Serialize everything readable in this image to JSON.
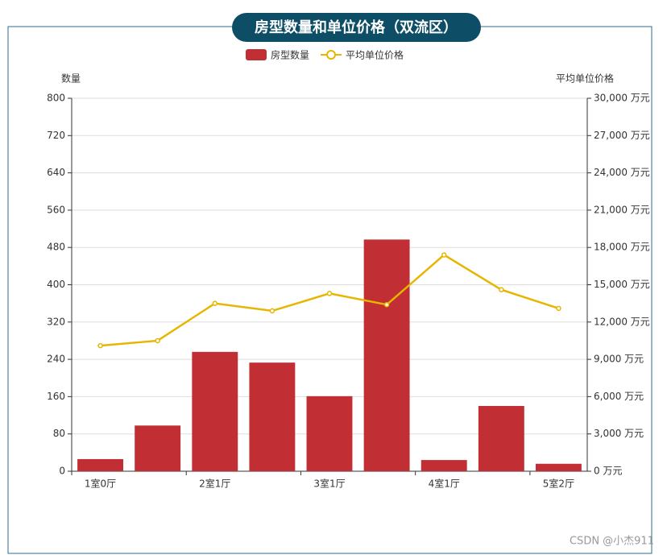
{
  "chart_data": {
    "type": "bar",
    "title": "房型数量和单位价格（双流区）",
    "ylabel": "数量",
    "y2label": "平均单位价格",
    "categories": [
      "1室0厅",
      null,
      "2室1厅",
      null,
      "3室1厅",
      null,
      "4室1厅",
      null,
      "5室2厅"
    ],
    "series": [
      {
        "name": "房型数量",
        "type": "bar",
        "color": "#c12e34",
        "values": [
          26,
          98,
          256,
          233,
          161,
          497,
          24,
          140,
          16
        ]
      },
      {
        "name": "平均单位价格",
        "type": "line",
        "color": "#e6b600",
        "axis": "y2",
        "values": [
          10100,
          10500,
          13500,
          12900,
          14300,
          13400,
          17400,
          14600,
          13100
        ]
      }
    ],
    "ylim": [
      0,
      800
    ],
    "yticks": [
      0,
      80,
      160,
      240,
      320,
      400,
      480,
      560,
      640,
      720,
      800
    ],
    "y2lim": [
      0,
      30000
    ],
    "y2ticks": [
      {
        "value": 0,
        "label": "0 万元"
      },
      {
        "value": 3000,
        "label": "3,000 万元"
      },
      {
        "value": 6000,
        "label": "6,000 万元"
      },
      {
        "value": 9000,
        "label": "9,000 万元"
      },
      {
        "value": 12000,
        "label": "12,000 万元"
      },
      {
        "value": 15000,
        "label": "15,000 万元"
      },
      {
        "value": 18000,
        "label": "18,000 万元"
      },
      {
        "value": 21000,
        "label": "21,000 万元"
      },
      {
        "value": 24000,
        "label": "24,000 万元"
      },
      {
        "value": 27000,
        "label": "27,000 万元"
      },
      {
        "value": 30000,
        "label": "30,000 万元"
      }
    ],
    "grid": true,
    "legend": "top"
  },
  "watermark": "CSDN @小杰911"
}
